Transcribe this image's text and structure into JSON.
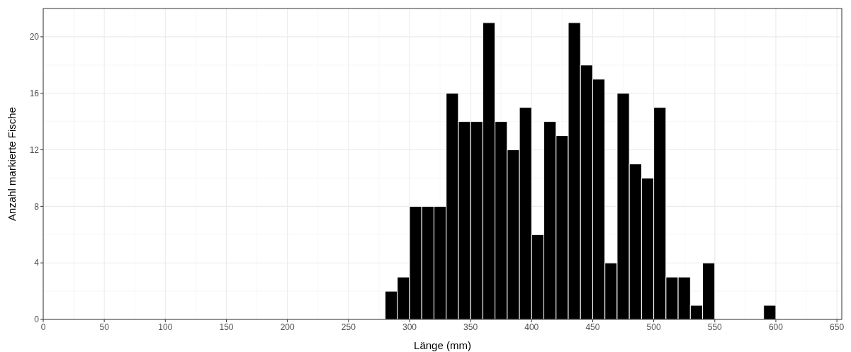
{
  "chart_data": {
    "type": "histogram",
    "xlabel": "Länge (mm)",
    "ylabel": "Anzahl markierte Fische",
    "color": "#000000",
    "bins": [
      280,
      290,
      300,
      310,
      320,
      330,
      340,
      350,
      360,
      370,
      380,
      390,
      400,
      410,
      420,
      430,
      440,
      450,
      460,
      470,
      480,
      490,
      500,
      510,
      520,
      530,
      540,
      550,
      560,
      570,
      580,
      590,
      600
    ],
    "values": [
      2,
      3,
      8,
      8,
      8,
      16,
      14,
      14,
      21,
      14,
      12,
      15,
      6,
      14,
      13,
      21,
      18,
      17,
      4,
      16,
      11,
      10,
      15,
      3,
      3,
      1,
      4,
      0,
      0,
      0,
      0,
      1
    ],
    "xlim": [
      0,
      654
    ],
    "xticks": [
      0,
      50,
      100,
      150,
      200,
      250,
      300,
      350,
      400,
      450,
      500,
      550,
      600,
      650
    ],
    "ylim": [
      0,
      22
    ],
    "yticks": [
      0,
      4,
      8,
      12,
      16,
      20
    ],
    "grid": true
  }
}
